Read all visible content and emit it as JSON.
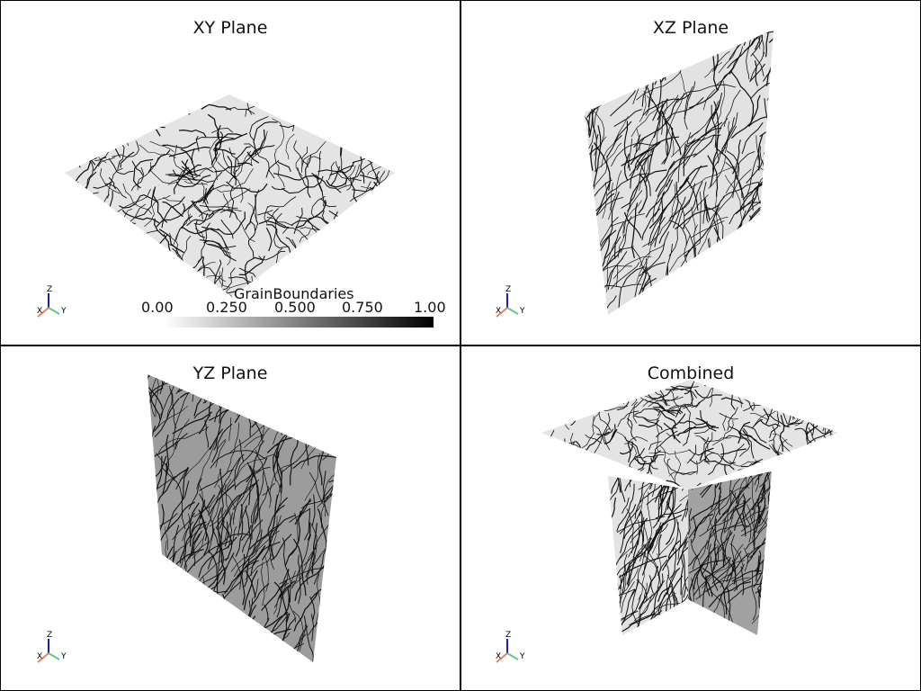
{
  "viewports": [
    {
      "id": "xy",
      "title": "XY Plane"
    },
    {
      "id": "xz",
      "title": "XZ Plane"
    },
    {
      "id": "yz",
      "title": "YZ Plane"
    },
    {
      "id": "combined",
      "title": "Combined"
    }
  ],
  "axes_labels": {
    "x": "X",
    "y": "Y",
    "z": "Z"
  },
  "scalar_bar": {
    "title": "GrainBoundaries",
    "ticks": [
      "0.00",
      "0.250",
      "0.500",
      "0.750",
      "1.00"
    ],
    "range": [
      0,
      1
    ],
    "color_low": "#ffffff",
    "color_high": "#000000"
  },
  "colors": {
    "border": "#000000",
    "slice_light": "#e4e4e4",
    "slice_dark": "#9c9c9c",
    "grain_line": "#111111",
    "axis_x": "#e8805a",
    "axis_y": "#5cc88a",
    "axis_z": "#1a1acc"
  }
}
